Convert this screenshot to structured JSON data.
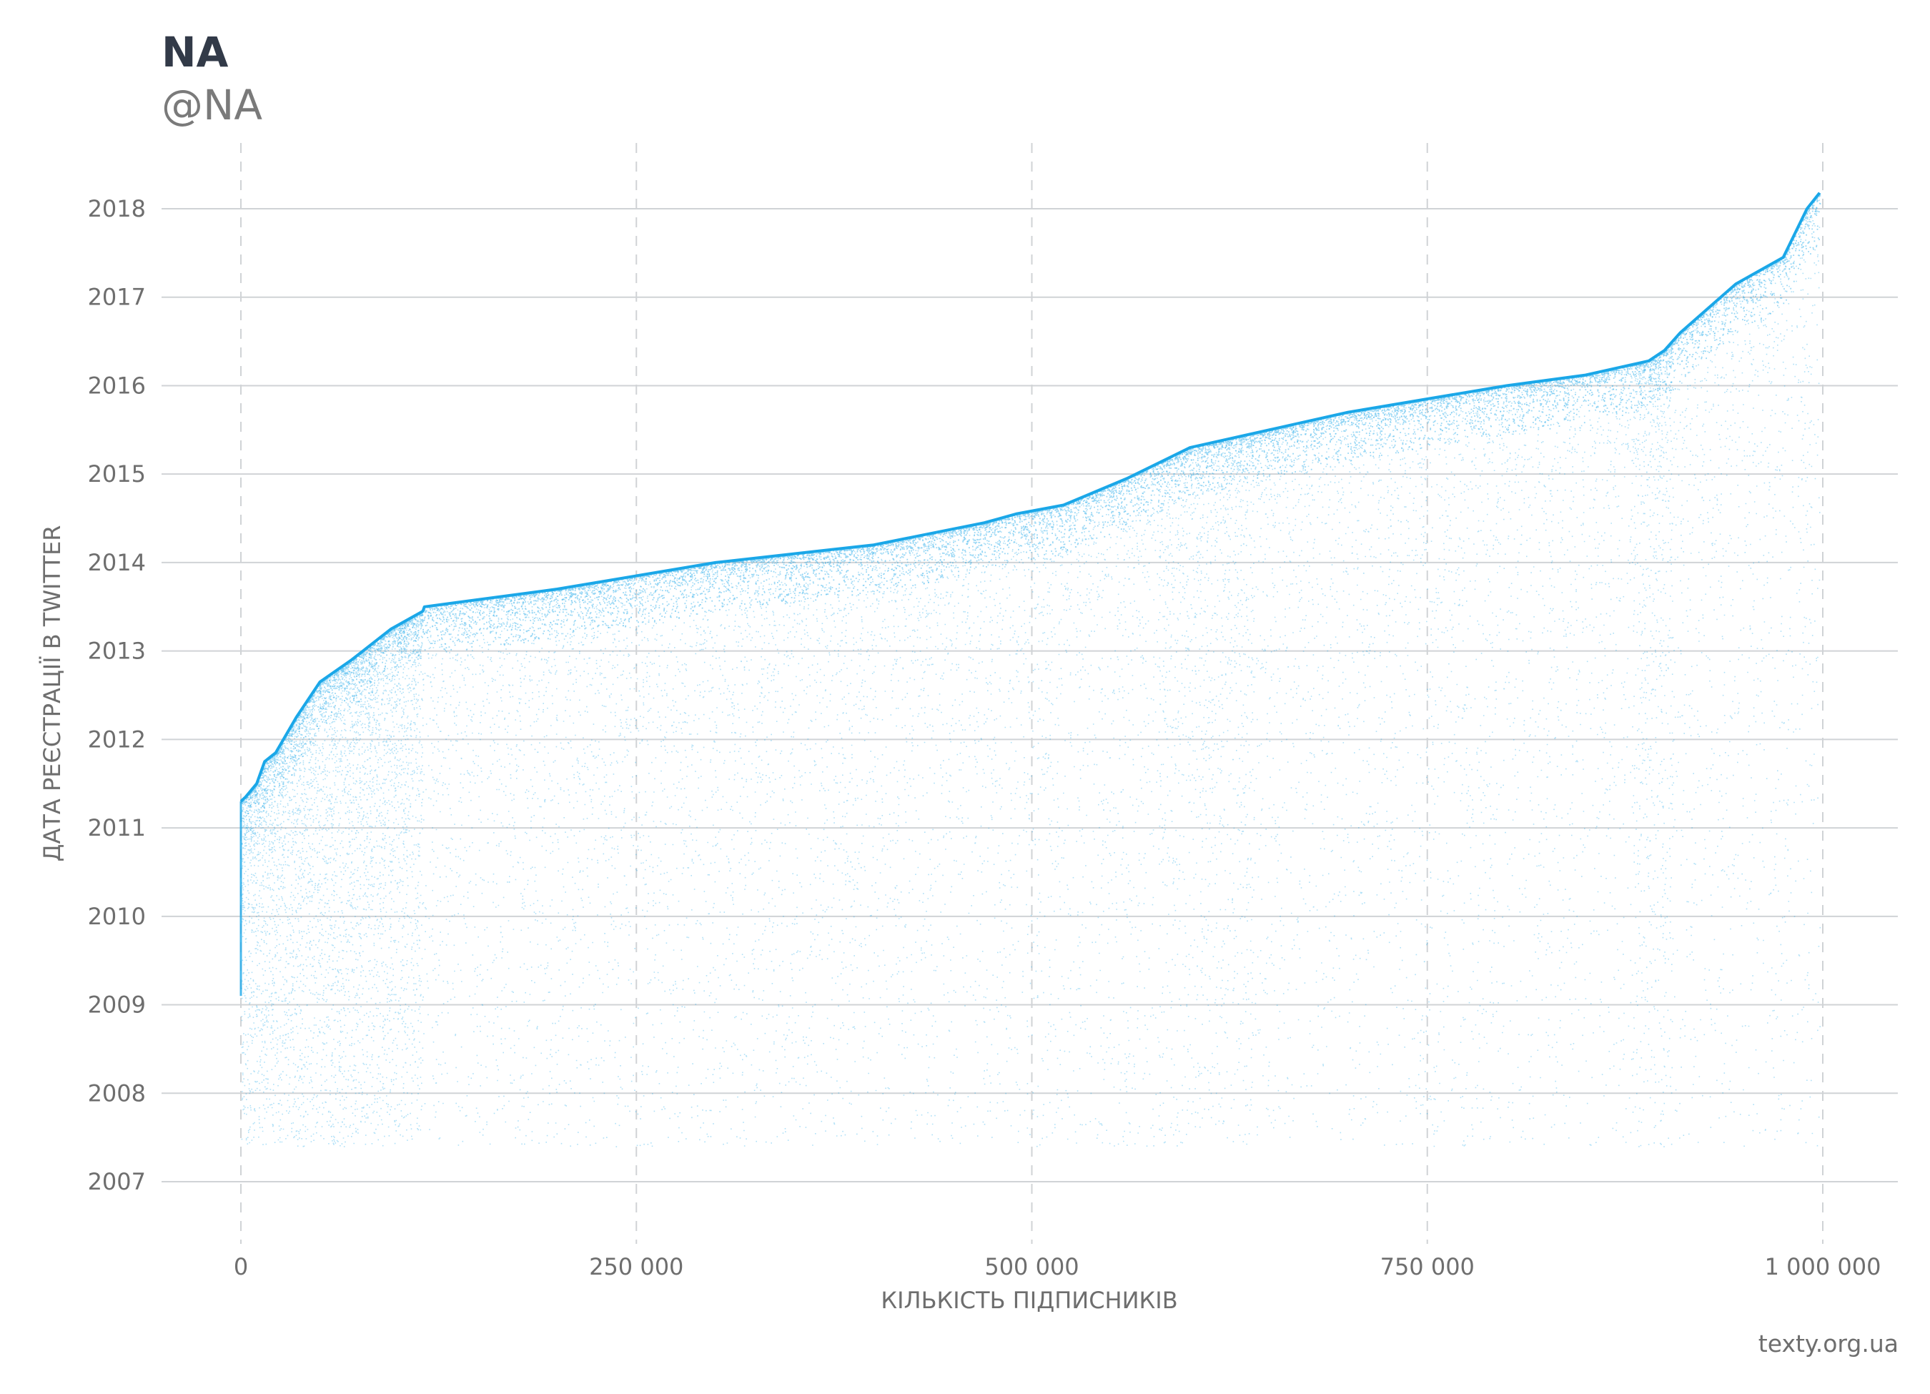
{
  "header": {
    "title": "NA",
    "subtitle": "@NA"
  },
  "source": "texty.org.ua",
  "colors": {
    "points": "#1aa7e8",
    "grid": "#d0d3d6",
    "text": "#6e6e6e",
    "title": "#323a48"
  },
  "chart_data": {
    "type": "scatter",
    "title": "NA",
    "subtitle": "@NA",
    "xlabel": "КІЛЬКІСТЬ ПІДПИСНИКІВ",
    "ylabel": "ДАТА РЕЄСТРАЦІЇ В TWITTER",
    "xlim": [
      -50000,
      1050000
    ],
    "ylim": [
      2006.3,
      2018.8
    ],
    "x_ticks": [
      0,
      250000,
      500000,
      750000,
      1000000
    ],
    "x_tick_labels": [
      "0",
      "250 000",
      "500 000",
      "750 000",
      "1 000 000"
    ],
    "y_ticks": [
      2007,
      2008,
      2009,
      2010,
      2011,
      2012,
      2013,
      2014,
      2015,
      2016,
      2017,
      2018
    ],
    "y_tick_labels": [
      "2007",
      "2008",
      "2009",
      "2010",
      "2011",
      "2012",
      "2013",
      "2014",
      "2015",
      "2016",
      "2017",
      "2018"
    ],
    "grid": {
      "horizontal": "solid",
      "vertical": "dashed"
    },
    "upper_envelope": {
      "x": [
        0,
        3000,
        10000,
        15000,
        22000,
        35000,
        50000,
        70000,
        95000,
        115000,
        116000,
        200000,
        300000,
        400000,
        470000,
        490000,
        520000,
        560000,
        600000,
        650000,
        700000,
        750000,
        800000,
        850000,
        890000,
        900000,
        910000,
        945000,
        975000,
        990000,
        998000
      ],
      "y": [
        2011.3,
        2011.35,
        2011.5,
        2011.75,
        2011.85,
        2012.25,
        2012.65,
        2012.9,
        2013.25,
        2013.45,
        2013.5,
        2013.7,
        2014.0,
        2014.2,
        2014.45,
        2014.55,
        2014.65,
        2014.95,
        2015.3,
        2015.5,
        2015.7,
        2015.85,
        2016.0,
        2016.12,
        2016.28,
        2016.4,
        2016.6,
        2017.15,
        2017.45,
        2018.0,
        2018.18
      ]
    }
  }
}
